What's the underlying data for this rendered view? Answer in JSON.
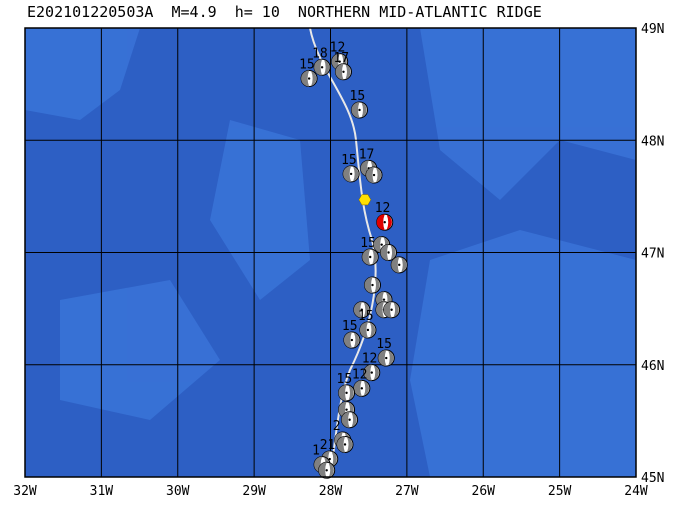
{
  "chart_data": {
    "type": "map",
    "title": "E202101220503A  M=4.9  h= 10  NORTHERN MID-ATLANTIC RIDGE",
    "xlim": [
      -32,
      -24
    ],
    "xticks": [
      {
        "value": -32,
        "label": "32W"
      },
      {
        "value": -31,
        "label": "31W"
      },
      {
        "value": -30,
        "label": "30W"
      },
      {
        "value": -29,
        "label": "29W"
      },
      {
        "value": -28,
        "label": "28W"
      },
      {
        "value": -27,
        "label": "27W"
      },
      {
        "value": -26,
        "label": "26W"
      },
      {
        "value": -25,
        "label": "25W"
      },
      {
        "value": -24,
        "label": "24W"
      }
    ],
    "ylim": [
      45,
      49
    ],
    "yticks": [
      {
        "value": 45,
        "label": "45N"
      },
      {
        "value": 46,
        "label": "46N"
      },
      {
        "value": 47,
        "label": "47N"
      },
      {
        "value": 48,
        "label": "48N"
      },
      {
        "value": 49,
        "label": "49N"
      }
    ],
    "grid": true,
    "epicenter": {
      "lon": -27.55,
      "lat": 47.47,
      "color": "#ffe000"
    },
    "events": {
      "lon": [
        -28.28,
        -28.11,
        -27.88,
        -27.83,
        -27.62,
        -27.73,
        -27.5,
        -27.43,
        -27.29,
        -27.48,
        -27.33,
        -27.1,
        -27.24,
        -27.45,
        -27.3,
        -27.3,
        -27.2,
        -27.59,
        -27.51,
        -27.72,
        -27.27,
        -27.46,
        -27.59,
        -27.79,
        -27.79,
        -27.75,
        -27.84,
        -27.81,
        -28.01,
        -28.11,
        -28.05
      ],
      "lat": [
        48.55,
        48.65,
        48.7,
        48.61,
        48.27,
        47.7,
        47.75,
        47.69,
        47.27,
        46.96,
        47.07,
        46.89,
        47.0,
        46.71,
        46.58,
        46.49,
        46.49,
        46.49,
        46.31,
        46.22,
        46.06,
        45.93,
        45.79,
        45.75,
        45.6,
        45.51,
        45.33,
        45.29,
        45.16,
        45.11,
        45.06
      ],
      "labels": [
        "15",
        "18",
        "12",
        "17",
        "15",
        "15",
        "17",
        null,
        "12",
        "15",
        null,
        null,
        null,
        null,
        null,
        null,
        null,
        null,
        "15",
        "15",
        "15",
        "12",
        "12",
        "15",
        null,
        null,
        "2",
        null,
        "21",
        "1",
        null
      ],
      "color": "#808080",
      "highlight": 8,
      "highlight_color": "#e00000"
    }
  }
}
